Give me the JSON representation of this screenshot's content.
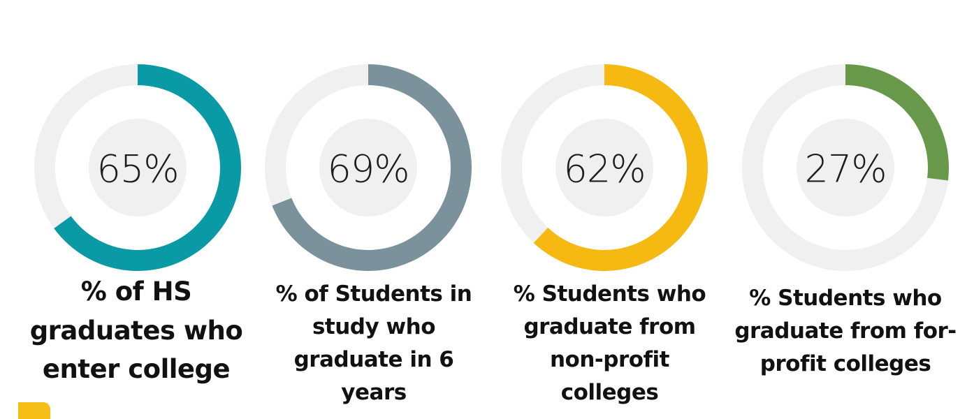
{
  "chart_data": {
    "type": "donut",
    "background_color": "#f0f0f0",
    "charts": [
      {
        "value": 65,
        "label": "65%",
        "caption": "% of HS graduates who enter college",
        "color": "#0a9aa6"
      },
      {
        "value": 69,
        "label": "69%",
        "caption": "% of Students in study who graduate in 6 years",
        "color": "#7b919b"
      },
      {
        "value": 62,
        "label": "62%",
        "caption": "% Students who graduate from non-profit colleges",
        "color": "#f5b912"
      },
      {
        "value": 27,
        "label": "27%",
        "caption": "% Students who graduate from for-profit colleges",
        "color": "#68994b"
      }
    ]
  },
  "decoration": {
    "corner_color": "#f5bf18"
  }
}
